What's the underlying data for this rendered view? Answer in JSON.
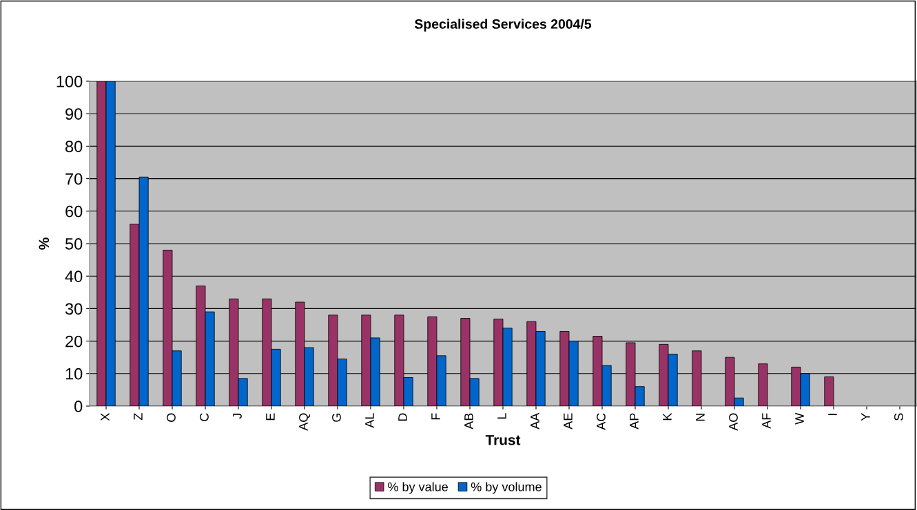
{
  "chart_data": {
    "type": "bar",
    "title": "Specialised Services 2004/5",
    "xlabel": "Trust",
    "ylabel": "%",
    "categories": [
      "X",
      "Z",
      "O",
      "C",
      "J",
      "E",
      "AQ",
      "G",
      "AL",
      "D",
      "F",
      "AB",
      "L",
      "AA",
      "AE",
      "AC",
      "AP",
      "K",
      "N",
      "AO",
      "AF",
      "W",
      "I",
      "Y",
      "S"
    ],
    "series": [
      {
        "name": "% by value",
        "color": "#993366",
        "values": [
          100,
          56,
          48,
          37,
          33,
          33,
          32,
          28,
          28,
          28,
          27.5,
          27,
          26.8,
          26,
          23,
          21.5,
          19.5,
          19,
          17,
          15,
          13,
          12,
          9,
          null,
          null
        ]
      },
      {
        "name": "% by volume",
        "color": "#0066cc",
        "values": [
          100,
          70.5,
          17,
          29,
          8.5,
          17.5,
          18,
          14.5,
          21,
          8.8,
          15.5,
          8.5,
          24,
          23,
          20,
          12.5,
          6,
          16,
          null,
          2.5,
          null,
          10,
          null,
          null,
          null
        ]
      }
    ],
    "ylim": [
      0,
      100
    ],
    "yticks": [
      0,
      10,
      20,
      30,
      40,
      50,
      60,
      70,
      80,
      90,
      100
    ],
    "grid": "y",
    "legend": "bottom"
  }
}
